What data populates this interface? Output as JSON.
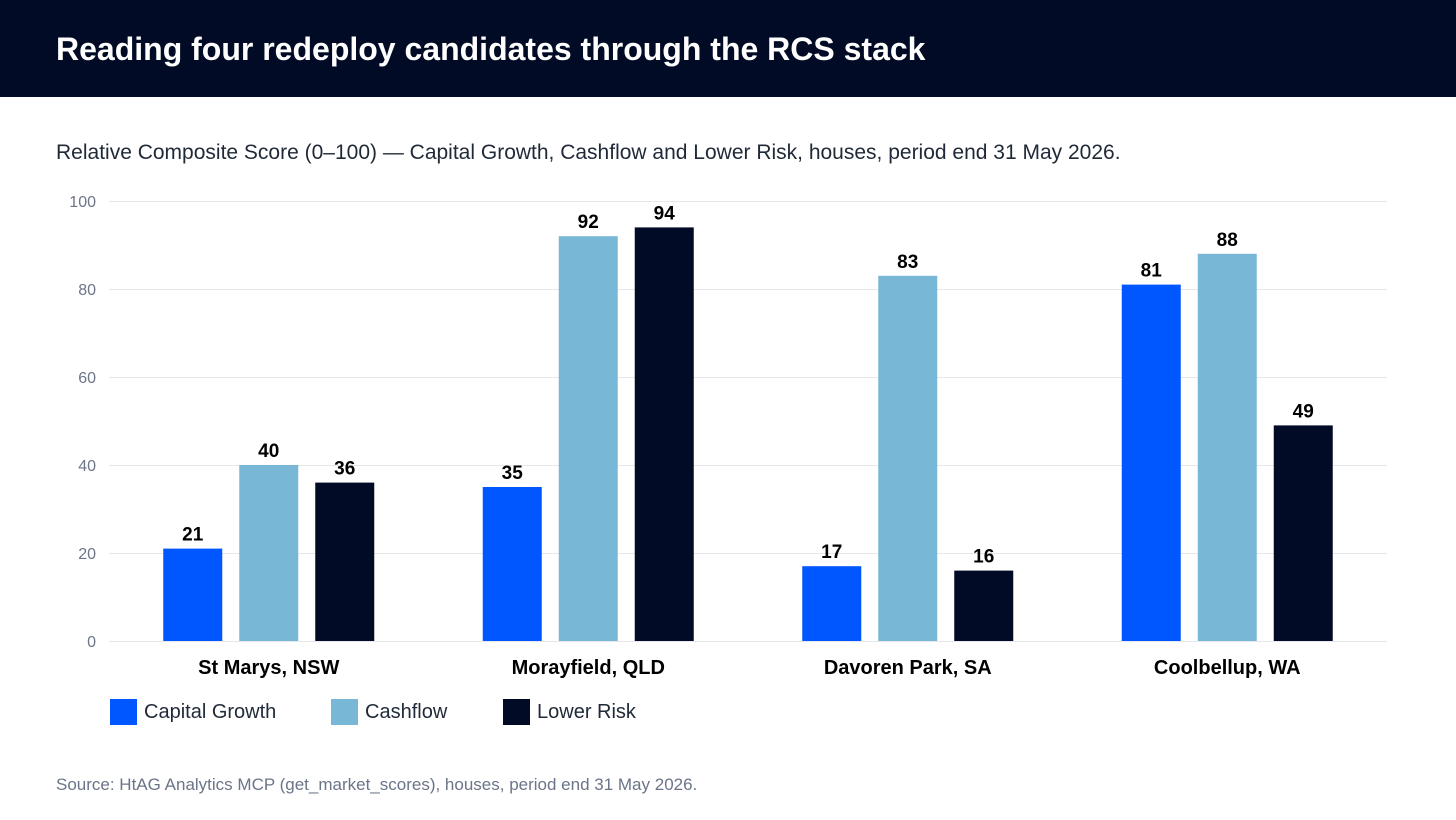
{
  "header": {
    "title": "Reading four redeploy candidates through the RCS stack"
  },
  "subtitle": "Relative Composite Score (0–100) — Capital Growth, Cashflow and Lower Risk, houses, period end 31 May 2026.",
  "source": "Source: HtAG Analytics MCP (get_market_scores), houses, period end 31 May 2026.",
  "colors": {
    "header_bg": "#020b26",
    "capital_growth": "#0057ff",
    "cashflow": "#78b7d6",
    "lower_risk": "#020b26",
    "grid": "#e5e7eb",
    "tick_text": "#6b7488",
    "label_text": "#000000"
  },
  "chart_data": {
    "type": "bar",
    "title": "",
    "xlabel": "",
    "ylabel": "",
    "ylim": [
      0,
      100
    ],
    "yticks": [
      0,
      20,
      40,
      60,
      80,
      100
    ],
    "grid": true,
    "legend_position": "bottom-left",
    "categories": [
      "St Marys, NSW",
      "Morayfield, QLD",
      "Davoren Park, SA",
      "Coolbellup, WA"
    ],
    "series": [
      {
        "name": "Capital Growth",
        "color": "#0057ff",
        "values": [
          21,
          35,
          17,
          81
        ]
      },
      {
        "name": "Cashflow",
        "color": "#78b7d6",
        "values": [
          40,
          92,
          83,
          88
        ]
      },
      {
        "name": "Lower Risk",
        "color": "#020b26",
        "values": [
          36,
          94,
          16,
          49
        ]
      }
    ]
  }
}
